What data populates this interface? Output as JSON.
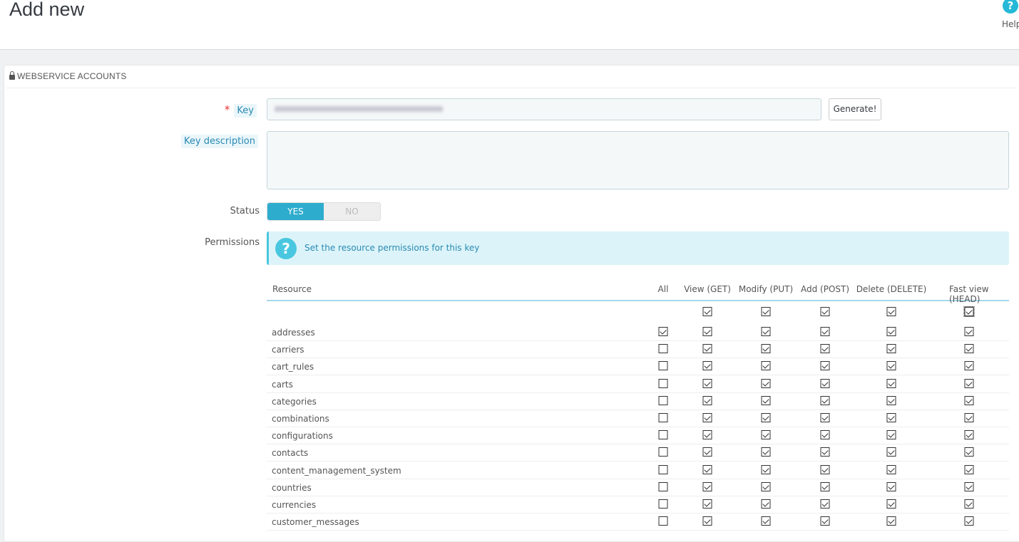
{
  "header": {
    "title": "Add new",
    "help_label": "Help",
    "help_icon": "question-circle-icon"
  },
  "panel": {
    "title": "WEBSERVICE ACCOUNTS",
    "icon": "lock-icon"
  },
  "form": {
    "key_label": "Key",
    "key_required_mark": "*",
    "key_value": "",
    "generate_label": "Generate!",
    "description_label": "Key description",
    "description_value": "",
    "status_label": "Status",
    "status_yes": "YES",
    "status_no": "NO",
    "status_value": "YES",
    "permissions_label": "Permissions",
    "permissions_hint": "Set the resource permissions for this key"
  },
  "colors": {
    "accent": "#25b9d7",
    "toggle_on": "#2eacce",
    "alert_bg": "#dcf4f9",
    "hint_text": "#2a8ab3"
  },
  "table": {
    "columns": [
      "Resource",
      "All",
      "View (GET)",
      "Modify (PUT)",
      "Add (POST)",
      "Delete (DELETE)",
      "Fast view (HEAD)"
    ],
    "header_checks": [
      null,
      true,
      true,
      true,
      true,
      true
    ],
    "rows": [
      {
        "name": "addresses",
        "checks": [
          true,
          true,
          true,
          true,
          true,
          true
        ]
      },
      {
        "name": "carriers",
        "checks": [
          false,
          true,
          true,
          true,
          true,
          true
        ]
      },
      {
        "name": "cart_rules",
        "checks": [
          false,
          true,
          true,
          true,
          true,
          true
        ]
      },
      {
        "name": "carts",
        "checks": [
          false,
          true,
          true,
          true,
          true,
          true
        ]
      },
      {
        "name": "categories",
        "checks": [
          false,
          true,
          true,
          true,
          true,
          true
        ]
      },
      {
        "name": "combinations",
        "checks": [
          false,
          true,
          true,
          true,
          true,
          true
        ]
      },
      {
        "name": "configurations",
        "checks": [
          false,
          true,
          true,
          true,
          true,
          true
        ]
      },
      {
        "name": "contacts",
        "checks": [
          false,
          true,
          true,
          true,
          true,
          true
        ]
      },
      {
        "name": "content_management_system",
        "checks": [
          false,
          true,
          true,
          true,
          true,
          true
        ]
      },
      {
        "name": "countries",
        "checks": [
          false,
          true,
          true,
          true,
          true,
          true
        ]
      },
      {
        "name": "currencies",
        "checks": [
          false,
          true,
          true,
          true,
          true,
          true
        ]
      },
      {
        "name": "customer_messages",
        "checks": [
          false,
          true,
          true,
          true,
          true,
          true
        ]
      }
    ]
  }
}
